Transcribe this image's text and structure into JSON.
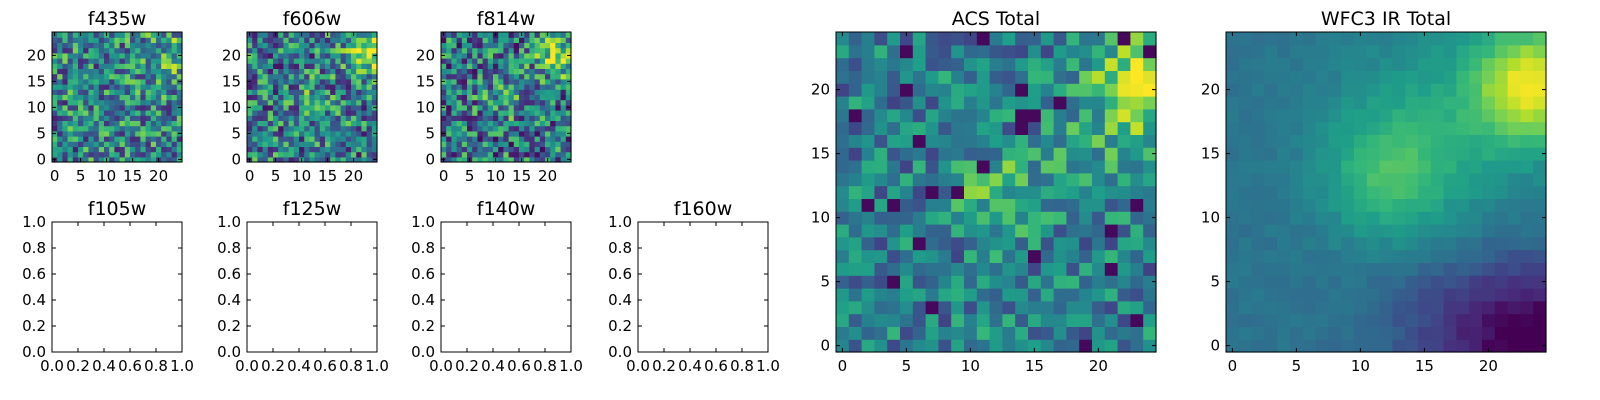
{
  "chart_data": [
    {
      "type": "heatmap",
      "title": "f435w",
      "colormap": "viridis",
      "grid": false,
      "xticks": [
        "0",
        "5",
        "10",
        "15",
        "20"
      ],
      "yticks": [
        "0",
        "5",
        "10",
        "15",
        "20"
      ],
      "xlim": [
        -0.5,
        24.5
      ],
      "ylim": [
        -0.5,
        24.5
      ],
      "grid_size": 25,
      "features": "uniform noise, slightly brighter toward upper right"
    },
    {
      "type": "heatmap",
      "title": "f606w",
      "colormap": "viridis",
      "grid": false,
      "xticks": [
        "0",
        "5",
        "10",
        "15",
        "20"
      ],
      "yticks": [
        "0",
        "5",
        "10",
        "15",
        "20"
      ],
      "xlim": [
        -0.5,
        24.5
      ],
      "ylim": [
        -0.5,
        24.5
      ],
      "grid_size": 25,
      "features": "noise with bright region at upper right"
    },
    {
      "type": "heatmap",
      "title": "f814w",
      "colormap": "viridis",
      "grid": false,
      "xticks": [
        "0",
        "5",
        "10",
        "15",
        "20"
      ],
      "yticks": [
        "0",
        "5",
        "10",
        "15",
        "20"
      ],
      "xlim": [
        -0.5,
        24.5
      ],
      "ylim": [
        -0.5,
        24.5
      ],
      "grid_size": 25,
      "features": "noise with bright spots at center and upper right"
    },
    {
      "type": "empty",
      "title": "f105w",
      "xticks": [
        "0.0",
        "0.2",
        "0.4",
        "0.6",
        "0.8",
        "1.0"
      ],
      "yticks": [
        "0.0",
        "0.2",
        "0.4",
        "0.6",
        "0.8",
        "1.0"
      ],
      "xlim": [
        0,
        1
      ],
      "ylim": [
        0,
        1
      ]
    },
    {
      "type": "empty",
      "title": "f125w",
      "xticks": [
        "0.0",
        "0.2",
        "0.4",
        "0.6",
        "0.8",
        "1.0"
      ],
      "yticks": [
        "0.0",
        "0.2",
        "0.4",
        "0.6",
        "0.8",
        "1.0"
      ],
      "xlim": [
        0,
        1
      ],
      "ylim": [
        0,
        1
      ]
    },
    {
      "type": "empty",
      "title": "f140w",
      "xticks": [
        "0.0",
        "0.2",
        "0.4",
        "0.6",
        "0.8",
        "1.0"
      ],
      "yticks": [
        "0.0",
        "0.2",
        "0.4",
        "0.6",
        "0.8",
        "1.0"
      ],
      "xlim": [
        0,
        1
      ],
      "ylim": [
        0,
        1
      ]
    },
    {
      "type": "empty",
      "title": "f160w",
      "xticks": [
        "0.0",
        "0.2",
        "0.4",
        "0.6",
        "0.8",
        "1.0"
      ],
      "yticks": [
        "0.0",
        "0.2",
        "0.4",
        "0.6",
        "0.8",
        "1.0"
      ],
      "xlim": [
        0,
        1
      ],
      "ylim": [
        0,
        1
      ]
    },
    {
      "type": "heatmap",
      "title": "ACS Total",
      "colormap": "viridis",
      "grid": false,
      "xticks": [
        "0",
        "5",
        "10",
        "15",
        "20"
      ],
      "yticks": [
        "0",
        "5",
        "10",
        "15",
        "20"
      ],
      "xlim": [
        -0.5,
        24.5
      ],
      "ylim": [
        -0.5,
        24.5
      ],
      "grid_size": 25,
      "features": "bright source at upper right (x~23, y~20), secondary blob near (12, 12)"
    },
    {
      "type": "heatmap",
      "title": "WFC3 IR Total",
      "colormap": "viridis",
      "grid": false,
      "xticks": [
        "0",
        "5",
        "10",
        "15",
        "20"
      ],
      "yticks": [
        "0",
        "5",
        "10",
        "15",
        "20"
      ],
      "xlim": [
        -0.5,
        24.5
      ],
      "ylim": [
        -0.5,
        24.5
      ],
      "grid_size": 25,
      "features": "smooth; bright at upper right (x~23, y~20), dark at lower right corner"
    }
  ]
}
